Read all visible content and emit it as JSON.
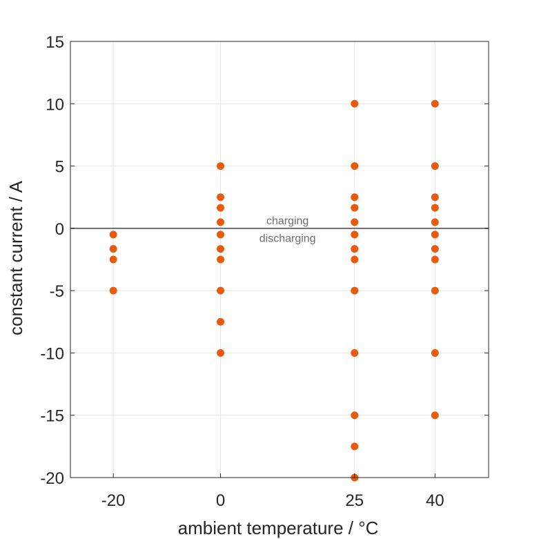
{
  "chart_data": {
    "type": "scatter",
    "title": "",
    "xlabel": "ambient temperature / °C",
    "ylabel": "constant current / A",
    "xlim": [
      -28,
      50
    ],
    "ylim": [
      -20,
      15
    ],
    "x_ticks": [
      -20,
      0,
      25,
      40
    ],
    "y_ticks": [
      15,
      10,
      5,
      0,
      -5,
      -10,
      -15,
      -20
    ],
    "grid": true,
    "reference_line": {
      "y": 0,
      "color": "#6e6e6e"
    },
    "annotations": [
      {
        "text": "charging",
        "x": 12.5,
        "y": 0.6
      },
      {
        "text": "discharging",
        "x": 12.5,
        "y": -0.8
      }
    ],
    "marker_color": "#e85a0c",
    "series": [
      {
        "points": [
          [
            -20,
            -0.5
          ],
          [
            -20,
            -1.65
          ],
          [
            -20,
            -2.5
          ],
          [
            -20,
            -5
          ],
          [
            0,
            5
          ],
          [
            0,
            2.5
          ],
          [
            0,
            1.65
          ],
          [
            0,
            0.5
          ],
          [
            0,
            -0.5
          ],
          [
            0,
            -1.65
          ],
          [
            0,
            -2.5
          ],
          [
            0,
            -5
          ],
          [
            0,
            -7.5
          ],
          [
            0,
            -10
          ],
          [
            25,
            10
          ],
          [
            25,
            5
          ],
          [
            25,
            2.5
          ],
          [
            25,
            1.65
          ],
          [
            25,
            0.5
          ],
          [
            25,
            -0.5
          ],
          [
            25,
            -1.65
          ],
          [
            25,
            -2.5
          ],
          [
            25,
            -5
          ],
          [
            25,
            -10
          ],
          [
            25,
            -15
          ],
          [
            25,
            -17.5
          ],
          [
            25,
            -20
          ],
          [
            40,
            10
          ],
          [
            40,
            5
          ],
          [
            40,
            2.5
          ],
          [
            40,
            1.65
          ],
          [
            40,
            0.5
          ],
          [
            40,
            -0.5
          ],
          [
            40,
            -1.65
          ],
          [
            40,
            -2.5
          ],
          [
            40,
            -5
          ],
          [
            40,
            -10
          ],
          [
            40,
            -15
          ]
        ]
      }
    ]
  }
}
